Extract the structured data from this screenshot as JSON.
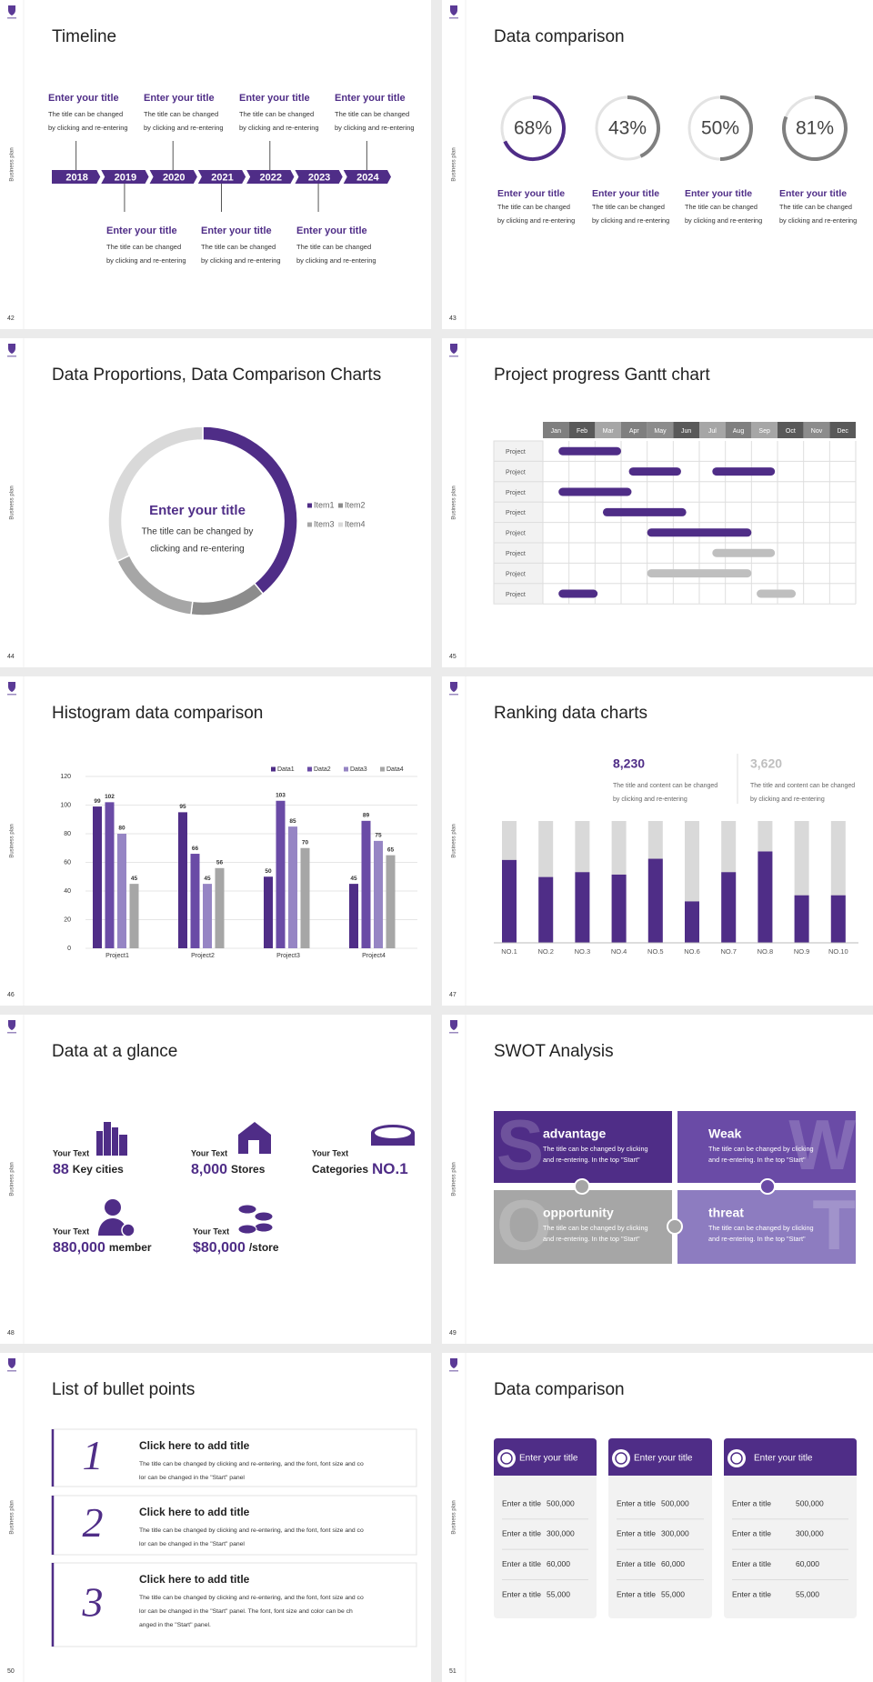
{
  "slides": [
    {
      "page": "42",
      "side_label": "Business plan",
      "title": "Timeline",
      "years": [
        "2018",
        "2019",
        "2020",
        "2021",
        "2022",
        "2023",
        "2024"
      ],
      "items": [
        {
          "title": "Enter your title",
          "lines": [
            "The title can be changed",
            "by clicking and re-entering"
          ]
        },
        {
          "title": "Enter your title",
          "lines": [
            "The title can be changed",
            "by clicking and re-entering"
          ]
        },
        {
          "title": "Enter your title",
          "lines": [
            "The title can be changed",
            "by clicking and re-entering"
          ]
        },
        {
          "title": "Enter your title",
          "lines": [
            "The title can be changed",
            "by clicking and re-entering"
          ]
        },
        {
          "title": "Enter your title",
          "lines": [
            "The title can be changed",
            "by clicking and re-entering"
          ]
        },
        {
          "title": "Enter your title",
          "lines": [
            "The title can be changed",
            "by clicking and re-entering"
          ]
        },
        {
          "title": "Enter your title",
          "lines": [
            "The title can be changed",
            "by clicking and re-entering"
          ]
        }
      ]
    },
    {
      "page": "43",
      "side_label": "Business plan",
      "title": "Data comparison",
      "rings": [
        {
          "value": 68,
          "value_label": "68%",
          "color": "#4f2d87",
          "title": "Enter your title",
          "lines": [
            "The title can be changed",
            "by clicking and re-entering"
          ]
        },
        {
          "value": 43,
          "value_label": "43%",
          "color": "#7f7f7f",
          "title": "Enter your title",
          "lines": [
            "The title can be changed",
            "by clicking and re-entering"
          ]
        },
        {
          "value": 50,
          "value_label": "50%",
          "color": "#7f7f7f",
          "title": "Enter your title",
          "lines": [
            "The title can be changed",
            "by clicking and re-entering"
          ]
        },
        {
          "value": 81,
          "value_label": "81%",
          "color": "#7f7f7f",
          "title": "Enter your title",
          "lines": [
            "The title can be changed",
            "by clicking and re-entering"
          ]
        }
      ]
    },
    {
      "page": "44",
      "side_label": "Business plan",
      "title": "Data Proportions, Data Comparison Charts",
      "donut": {
        "center_title": "Enter your title",
        "center_lines": [
          "The title can be changed by",
          "clicking and re-entering"
        ],
        "categories": [
          "Item1",
          "Item2",
          "Item3",
          "Item4"
        ],
        "values": [
          39,
          13,
          16,
          32
        ],
        "colors": [
          "#4f2d87",
          "#8c8c8c",
          "#a6a6a6",
          "#d9d9d9"
        ]
      }
    },
    {
      "page": "45",
      "side_label": "Business plan",
      "title": "Project progress Gantt chart",
      "months": [
        "Jan",
        "Feb",
        "Mar",
        "Apr",
        "May",
        "Jun",
        "Jul",
        "Aug",
        "Sep",
        "Oct",
        "Nov",
        "Dec"
      ],
      "rows": [
        {
          "label": "Project",
          "bars": [
            {
              "start": 0.6,
              "end": 3.0,
              "color": "#4f2d87"
            }
          ]
        },
        {
          "label": "Project",
          "bars": [
            {
              "start": 3.3,
              "end": 5.3,
              "color": "#4f2d87"
            },
            {
              "start": 6.5,
              "end": 8.9,
              "color": "#4f2d87"
            }
          ]
        },
        {
          "label": "Project",
          "bars": [
            {
              "start": 0.6,
              "end": 3.4,
              "color": "#4f2d87"
            }
          ]
        },
        {
          "label": "Project",
          "bars": [
            {
              "start": 2.3,
              "end": 5.5,
              "color": "#4f2d87"
            }
          ]
        },
        {
          "label": "Project",
          "bars": [
            {
              "start": 4.0,
              "end": 8.0,
              "color": "#4f2d87"
            }
          ]
        },
        {
          "label": "Project",
          "bars": [
            {
              "start": 6.5,
              "end": 8.9,
              "color": "#bfbfbf"
            }
          ]
        },
        {
          "label": "Project",
          "bars": [
            {
              "start": 4.0,
              "end": 8.0,
              "color": "#bfbfbf"
            }
          ]
        },
        {
          "label": "Project",
          "bars": [
            {
              "start": 0.6,
              "end": 2.1,
              "color": "#4f2d87"
            },
            {
              "start": 8.2,
              "end": 9.7,
              "color": "#bfbfbf"
            }
          ]
        }
      ]
    },
    {
      "page": "46",
      "side_label": "Business plan",
      "title": "Histogram data comparison",
      "chart": {
        "type": "bar",
        "categories": [
          "Project1",
          "Project2",
          "Project3",
          "Project4"
        ],
        "series": [
          {
            "name": "Data1",
            "color": "#4f2d87",
            "values": [
              99,
              95,
              50,
              45
            ]
          },
          {
            "name": "Data2",
            "color": "#6a4ba6",
            "values": [
              102,
              66,
              103,
              89
            ]
          },
          {
            "name": "Data3",
            "color": "#9685c4",
            "values": [
              80,
              45,
              85,
              75
            ]
          },
          {
            "name": "Data4",
            "color": "#a6a6a6",
            "values": [
              45,
              56,
              70,
              65
            ]
          }
        ],
        "ylim": [
          0,
          120
        ],
        "yticks": [
          0,
          20,
          40,
          60,
          80,
          100,
          120
        ],
        "grid": true
      }
    },
    {
      "page": "47",
      "side_label": "Business plan",
      "title": "Ranking data charts",
      "stats": [
        {
          "value": "8,230",
          "color": "#4f2d87",
          "lines": [
            "The title and content can be changed",
            "by clicking and re-entering"
          ]
        },
        {
          "value": "3,620",
          "color": "#bfbfbf",
          "lines": [
            "The title and content can be changed",
            "by clicking and re-entering"
          ]
        }
      ],
      "chart": {
        "type": "bar",
        "categories": [
          "NO.1",
          "NO.2",
          "NO.3",
          "NO.4",
          "NO.5",
          "NO.6",
          "NO.7",
          "NO.8",
          "NO.9",
          "NO.10"
        ],
        "values": [
          68,
          54,
          58,
          56,
          69,
          34,
          58,
          75,
          39,
          39
        ],
        "ylim": [
          0,
          100
        ],
        "color": "#4f2d87"
      }
    },
    {
      "page": "48",
      "side_label": "Business plan",
      "title": "Data at a glance",
      "facts": [
        {
          "label": "Your Text",
          "value": "88",
          "unit": "Key cities"
        },
        {
          "label": "Your Text",
          "value": "8,000",
          "unit": "Stores"
        },
        {
          "label": "Your Text",
          "prefix": "Categories",
          "value": "NO.1"
        },
        {
          "label": "Your Text",
          "value": "880,000",
          "unit": "member"
        },
        {
          "label": "Your Text",
          "value": "$80,000",
          "unit": "/store"
        }
      ]
    },
    {
      "page": "49",
      "side_label": "Business plan",
      "title": "SWOT Analysis",
      "swot": [
        {
          "letter": "S",
          "title": "advantage",
          "color": "#4f2d87",
          "lines": [
            "The title can be changed by clicking",
            "and re-entering. In the top \"Start\""
          ]
        },
        {
          "letter": "W",
          "title": "Weak",
          "color": "#6a4ba6",
          "lines": [
            "The title can be changed by clicking",
            "and re-entering. In the top \"Start\""
          ]
        },
        {
          "letter": "O",
          "title": "opportunity",
          "color": "#a6a6a6",
          "lines": [
            "The title can be changed by clicking",
            "and re-entering. In the top \"Start\""
          ]
        },
        {
          "letter": "T",
          "title": "threat",
          "color": "#8d7cc0",
          "lines": [
            "The title can be changed by clicking",
            "and re-entering. In the top \"Start\""
          ]
        }
      ]
    },
    {
      "page": "50",
      "side_label": "Business plan",
      "title": "List of bullet points",
      "bullets": [
        {
          "number": "1",
          "title": "Click here to add title",
          "lines": [
            "The title can be changed by clicking and re-entering, and the font, font size and co",
            "lor can be changed in the \"Start\" panel"
          ]
        },
        {
          "number": "2",
          "title": "Click here to add title",
          "lines": [
            "The title can be changed by clicking and re-entering, and the font, font size and co",
            "lor can be changed in the \"Start\" panel"
          ]
        },
        {
          "number": "3",
          "title": "Click here to add title",
          "lines": [
            "The title can be changed by clicking and re-entering, and the font, font size and co",
            "lor can be changed in the \"Start\" panel. The font, font size and color can be ch",
            "anged in the \"Start\" panel."
          ]
        }
      ]
    },
    {
      "page": "51",
      "side_label": "Business plan",
      "title": "Data comparison",
      "cards": [
        {
          "title": "Enter your title",
          "rows": [
            [
              "Enter a title",
              "500,000"
            ],
            [
              "Enter a title",
              "300,000"
            ],
            [
              "Enter a title",
              "60,000"
            ],
            [
              "Enter a title",
              "55,000"
            ]
          ]
        },
        {
          "title": "Enter your title",
          "rows": [
            [
              "Enter a title",
              "500,000"
            ],
            [
              "Enter a title",
              "300,000"
            ],
            [
              "Enter a title",
              "60,000"
            ],
            [
              "Enter a title",
              "55,000"
            ]
          ]
        },
        {
          "title": "Enter your title",
          "rows": [
            [
              "Enter a title",
              "500,000"
            ],
            [
              "Enter a title",
              "300,000"
            ],
            [
              "Enter a title",
              "60,000"
            ],
            [
              "Enter a title",
              "55,000"
            ]
          ]
        }
      ]
    }
  ]
}
